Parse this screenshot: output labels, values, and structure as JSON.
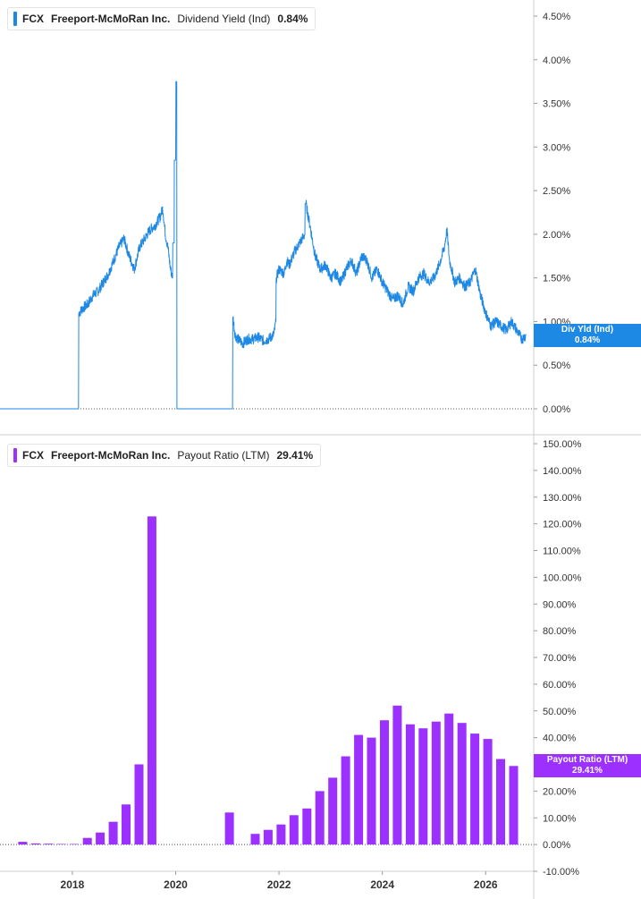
{
  "colors": {
    "yield": "#1e88e5",
    "payout": "#9b30ff",
    "axis": "#999999",
    "text": "#333333"
  },
  "top_legend": {
    "ticker": "FCX",
    "company": "Freeport-McMoRan Inc.",
    "metric": "Dividend Yield (Ind)",
    "value": "0.84%"
  },
  "bottom_legend": {
    "ticker": "FCX",
    "company": "Freeport-McMoRan Inc.",
    "metric": "Payout Ratio (LTM)",
    "value": "29.41%"
  },
  "top_badge": {
    "line1": "Div Yld (Ind)",
    "line2": "0.84%"
  },
  "bottom_badge": {
    "line1": "Payout Ratio (LTM)",
    "line2": "29.41%"
  },
  "chart_data": [
    {
      "type": "line",
      "series": [
        {
          "name": "Dividend Yield (Ind)",
          "x": [
            2016.6,
            2017.0,
            2017.5,
            2018.0,
            2018.12,
            2018.13,
            2018.2,
            2018.3,
            2018.4,
            2018.5,
            2018.6,
            2018.7,
            2018.8,
            2018.9,
            2019.0,
            2019.1,
            2019.2,
            2019.3,
            2019.4,
            2019.5,
            2019.6,
            2019.7,
            2019.75,
            2019.8,
            2019.85,
            2019.9,
            2019.94,
            2019.97,
            2020.0,
            2020.02,
            2020.03,
            2020.3,
            2020.6,
            2020.9,
            2021.0,
            2021.1,
            2021.11,
            2021.15,
            2021.2,
            2021.3,
            2021.4,
            2021.5,
            2021.6,
            2021.7,
            2021.8,
            2021.9,
            2021.94,
            2021.95,
            2022.0,
            2022.1,
            2022.15,
            2022.2,
            2022.3,
            2022.4,
            2022.5,
            2022.52,
            2022.6,
            2022.7,
            2022.8,
            2022.9,
            2023.0,
            2023.1,
            2023.2,
            2023.3,
            2023.4,
            2023.5,
            2023.6,
            2023.7,
            2023.8,
            2023.9,
            2024.0,
            2024.1,
            2024.2,
            2024.3,
            2024.4,
            2024.5,
            2024.6,
            2024.7,
            2024.8,
            2024.9,
            2025.0,
            2025.1,
            2025.2,
            2025.25,
            2025.3,
            2025.4,
            2025.5,
            2025.6,
            2025.7,
            2025.8,
            2025.9,
            2026.0,
            2026.1,
            2026.2,
            2026.3,
            2026.4,
            2026.5,
            2026.6,
            2026.7,
            2026.78
          ],
          "values": [
            0,
            0,
            0,
            0,
            0,
            1.1,
            1.15,
            1.2,
            1.3,
            1.35,
            1.45,
            1.55,
            1.7,
            1.85,
            1.95,
            1.75,
            1.6,
            1.85,
            1.95,
            2.05,
            2.1,
            2.2,
            2.3,
            2.0,
            1.85,
            1.6,
            1.5,
            1.9,
            2.85,
            3.75,
            0,
            0,
            0,
            0,
            0,
            0,
            1.05,
            0.85,
            0.8,
            0.75,
            0.8,
            0.8,
            0.82,
            0.78,
            0.8,
            0.85,
            1.0,
            1.5,
            1.6,
            1.55,
            1.7,
            1.65,
            1.8,
            1.9,
            2.0,
            2.35,
            2.1,
            1.75,
            1.6,
            1.65,
            1.5,
            1.55,
            1.45,
            1.6,
            1.7,
            1.55,
            1.75,
            1.7,
            1.5,
            1.6,
            1.45,
            1.35,
            1.25,
            1.3,
            1.2,
            1.4,
            1.35,
            1.5,
            1.55,
            1.45,
            1.5,
            1.65,
            1.85,
            2.05,
            1.7,
            1.45,
            1.5,
            1.4,
            1.45,
            1.6,
            1.3,
            1.1,
            0.95,
            1.0,
            0.95,
            0.9,
            1.0,
            0.9,
            0.8,
            0.84
          ]
        }
      ],
      "ylim": [
        0,
        4.5
      ],
      "ytick_labels": [
        "0.00%",
        "0.50%",
        "1.00%",
        "1.50%",
        "2.00%",
        "2.50%",
        "3.00%",
        "3.50%",
        "4.00%",
        "4.50%"
      ],
      "xlim": [
        2016.6,
        2026.93
      ]
    },
    {
      "type": "bar",
      "series": [
        {
          "name": "Payout Ratio (LTM)",
          "x": [
            2017.04,
            2017.29,
            2017.54,
            2017.79,
            2018.04,
            2018.29,
            2018.54,
            2018.79,
            2019.04,
            2019.29,
            2019.54,
            2019.79,
            2021.04,
            2021.54,
            2021.79,
            2022.04,
            2022.29,
            2022.54,
            2022.79,
            2023.04,
            2023.29,
            2023.54,
            2023.79,
            2024.04,
            2024.29,
            2024.54,
            2024.79,
            2025.04,
            2025.29,
            2025.54,
            2025.79,
            2026.04,
            2026.29,
            2026.54
          ],
          "values": [
            1.0,
            0.4,
            0.3,
            0.2,
            0.2,
            2.5,
            4.5,
            8.5,
            15.0,
            30.0,
            122.8,
            0.0,
            12.0,
            4.0,
            5.5,
            7.5,
            11.0,
            13.5,
            20.0,
            25.0,
            33.0,
            41.0,
            40.0,
            46.5,
            52.0,
            45.0,
            43.5,
            46.0,
            49.0,
            45.5,
            41.5,
            39.5,
            32.0,
            29.41
          ]
        }
      ],
      "ylim": [
        -10,
        150
      ],
      "ytick_labels": [
        "-10.00%",
        "0.00%",
        "10.00%",
        "20.00%",
        "30.00%",
        "40.00%",
        "50.00%",
        "60.00%",
        "70.00%",
        "80.00%",
        "90.00%",
        "100.00%",
        "110.00%",
        "120.00%",
        "130.00%",
        "140.00%",
        "150.00%"
      ],
      "xtick_labels": [
        "2018",
        "2020",
        "2022",
        "2024",
        "2026"
      ],
      "xtick_values": [
        2018,
        2020,
        2022,
        2024,
        2026
      ],
      "xlim": [
        2016.6,
        2026.93
      ]
    }
  ]
}
